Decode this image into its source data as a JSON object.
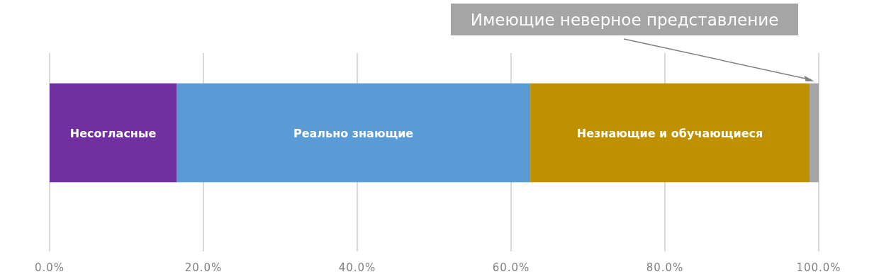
{
  "chart_data": {
    "type": "bar",
    "orientation": "horizontal",
    "stacked": true,
    "categories": [
      null
    ],
    "series": [
      {
        "name": "Несогласные",
        "color": "#7030a0",
        "values": [
          16.5
        ]
      },
      {
        "name": "Реально знающие",
        "color": "#5b9bd5",
        "values": [
          46
        ]
      },
      {
        "name": "Незнающие и обучающиеся",
        "color": "#bf9000",
        "values": [
          36.3
        ]
      },
      {
        "name": "Имеющие неверное представление",
        "color": "#a5a5a5",
        "values": [
          1.2
        ]
      }
    ],
    "xlim": [
      0,
      100
    ],
    "xticks": [
      {
        "value": 0,
        "label": "0.0%"
      },
      {
        "value": 20,
        "label": "20.0%"
      },
      {
        "value": 40,
        "label": "40.0%"
      },
      {
        "value": 60,
        "label": "60.0%"
      },
      {
        "value": 80,
        "label": "80.0%"
      },
      {
        "value": 100,
        "label": "100.0%"
      }
    ],
    "grid": "x"
  }
}
